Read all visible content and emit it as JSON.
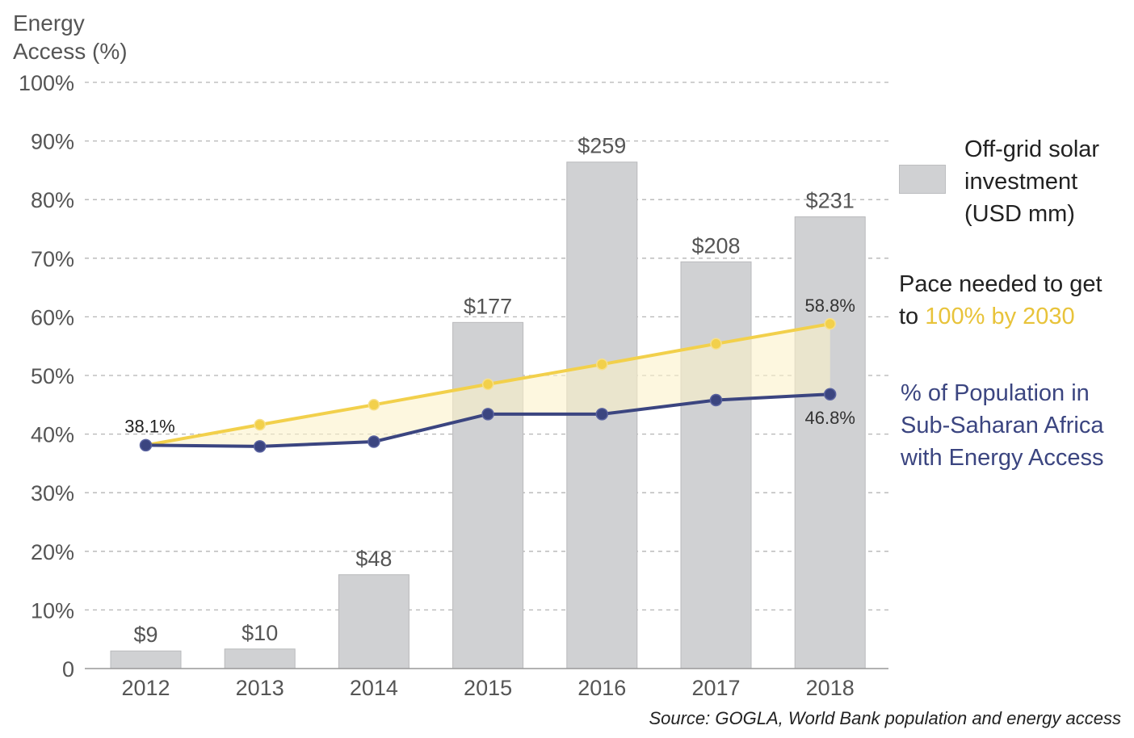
{
  "chart_data": {
    "type": "bar",
    "ylabel": "Energy Access (%)",
    "ylabel_lines": [
      "Energy",
      "Access (%)"
    ],
    "ylim": [
      0,
      100
    ],
    "y_ticks": [
      "0",
      "10%",
      "20%",
      "30%",
      "40%",
      "50%",
      "60%",
      "70%",
      "80%",
      "90%",
      "100%"
    ],
    "grid": "horizontal dashed",
    "categories": [
      "2012",
      "2013",
      "2014",
      "2015",
      "2016",
      "2017",
      "2018"
    ],
    "series": [
      {
        "name": "Off-grid solar investment (USD mm)",
        "type": "bar",
        "values": [
          9,
          10,
          48,
          177,
          259,
          208,
          231
        ],
        "data_labels": [
          "$9",
          "$10",
          "$48",
          "$177",
          "$259",
          "$208",
          "$231"
        ],
        "color": "#d0d1d3"
      },
      {
        "name": "Pace needed to get to 100% by 2030",
        "type": "line",
        "values": [
          38.1,
          41.6,
          45.0,
          48.5,
          51.9,
          55.4,
          58.8
        ],
        "end_label": "58.8%",
        "color": "#f2d04b"
      },
      {
        "name": "% of Population in Sub-Saharan Africa with Energy Access",
        "type": "line",
        "values": [
          38.1,
          37.9,
          38.7,
          43.4,
          43.4,
          45.8,
          46.8
        ],
        "start_label": "38.1%",
        "end_label": "46.8%",
        "color": "#3b4580"
      }
    ],
    "fill_between_color": "#fbf2c9",
    "legend": {
      "placement": "right",
      "bars_lines": [
        "Off-grid solar",
        "investment",
        "(USD mm)"
      ],
      "pace_line1": "Pace needed to get",
      "pace_prefix": "to ",
      "pace_highlight": "100% by 2030",
      "pop_lines": [
        "% of Population in",
        "Sub-Saharan Africa",
        "with Energy Access"
      ]
    },
    "source": "Source: GOGLA, World Bank population and energy access"
  }
}
